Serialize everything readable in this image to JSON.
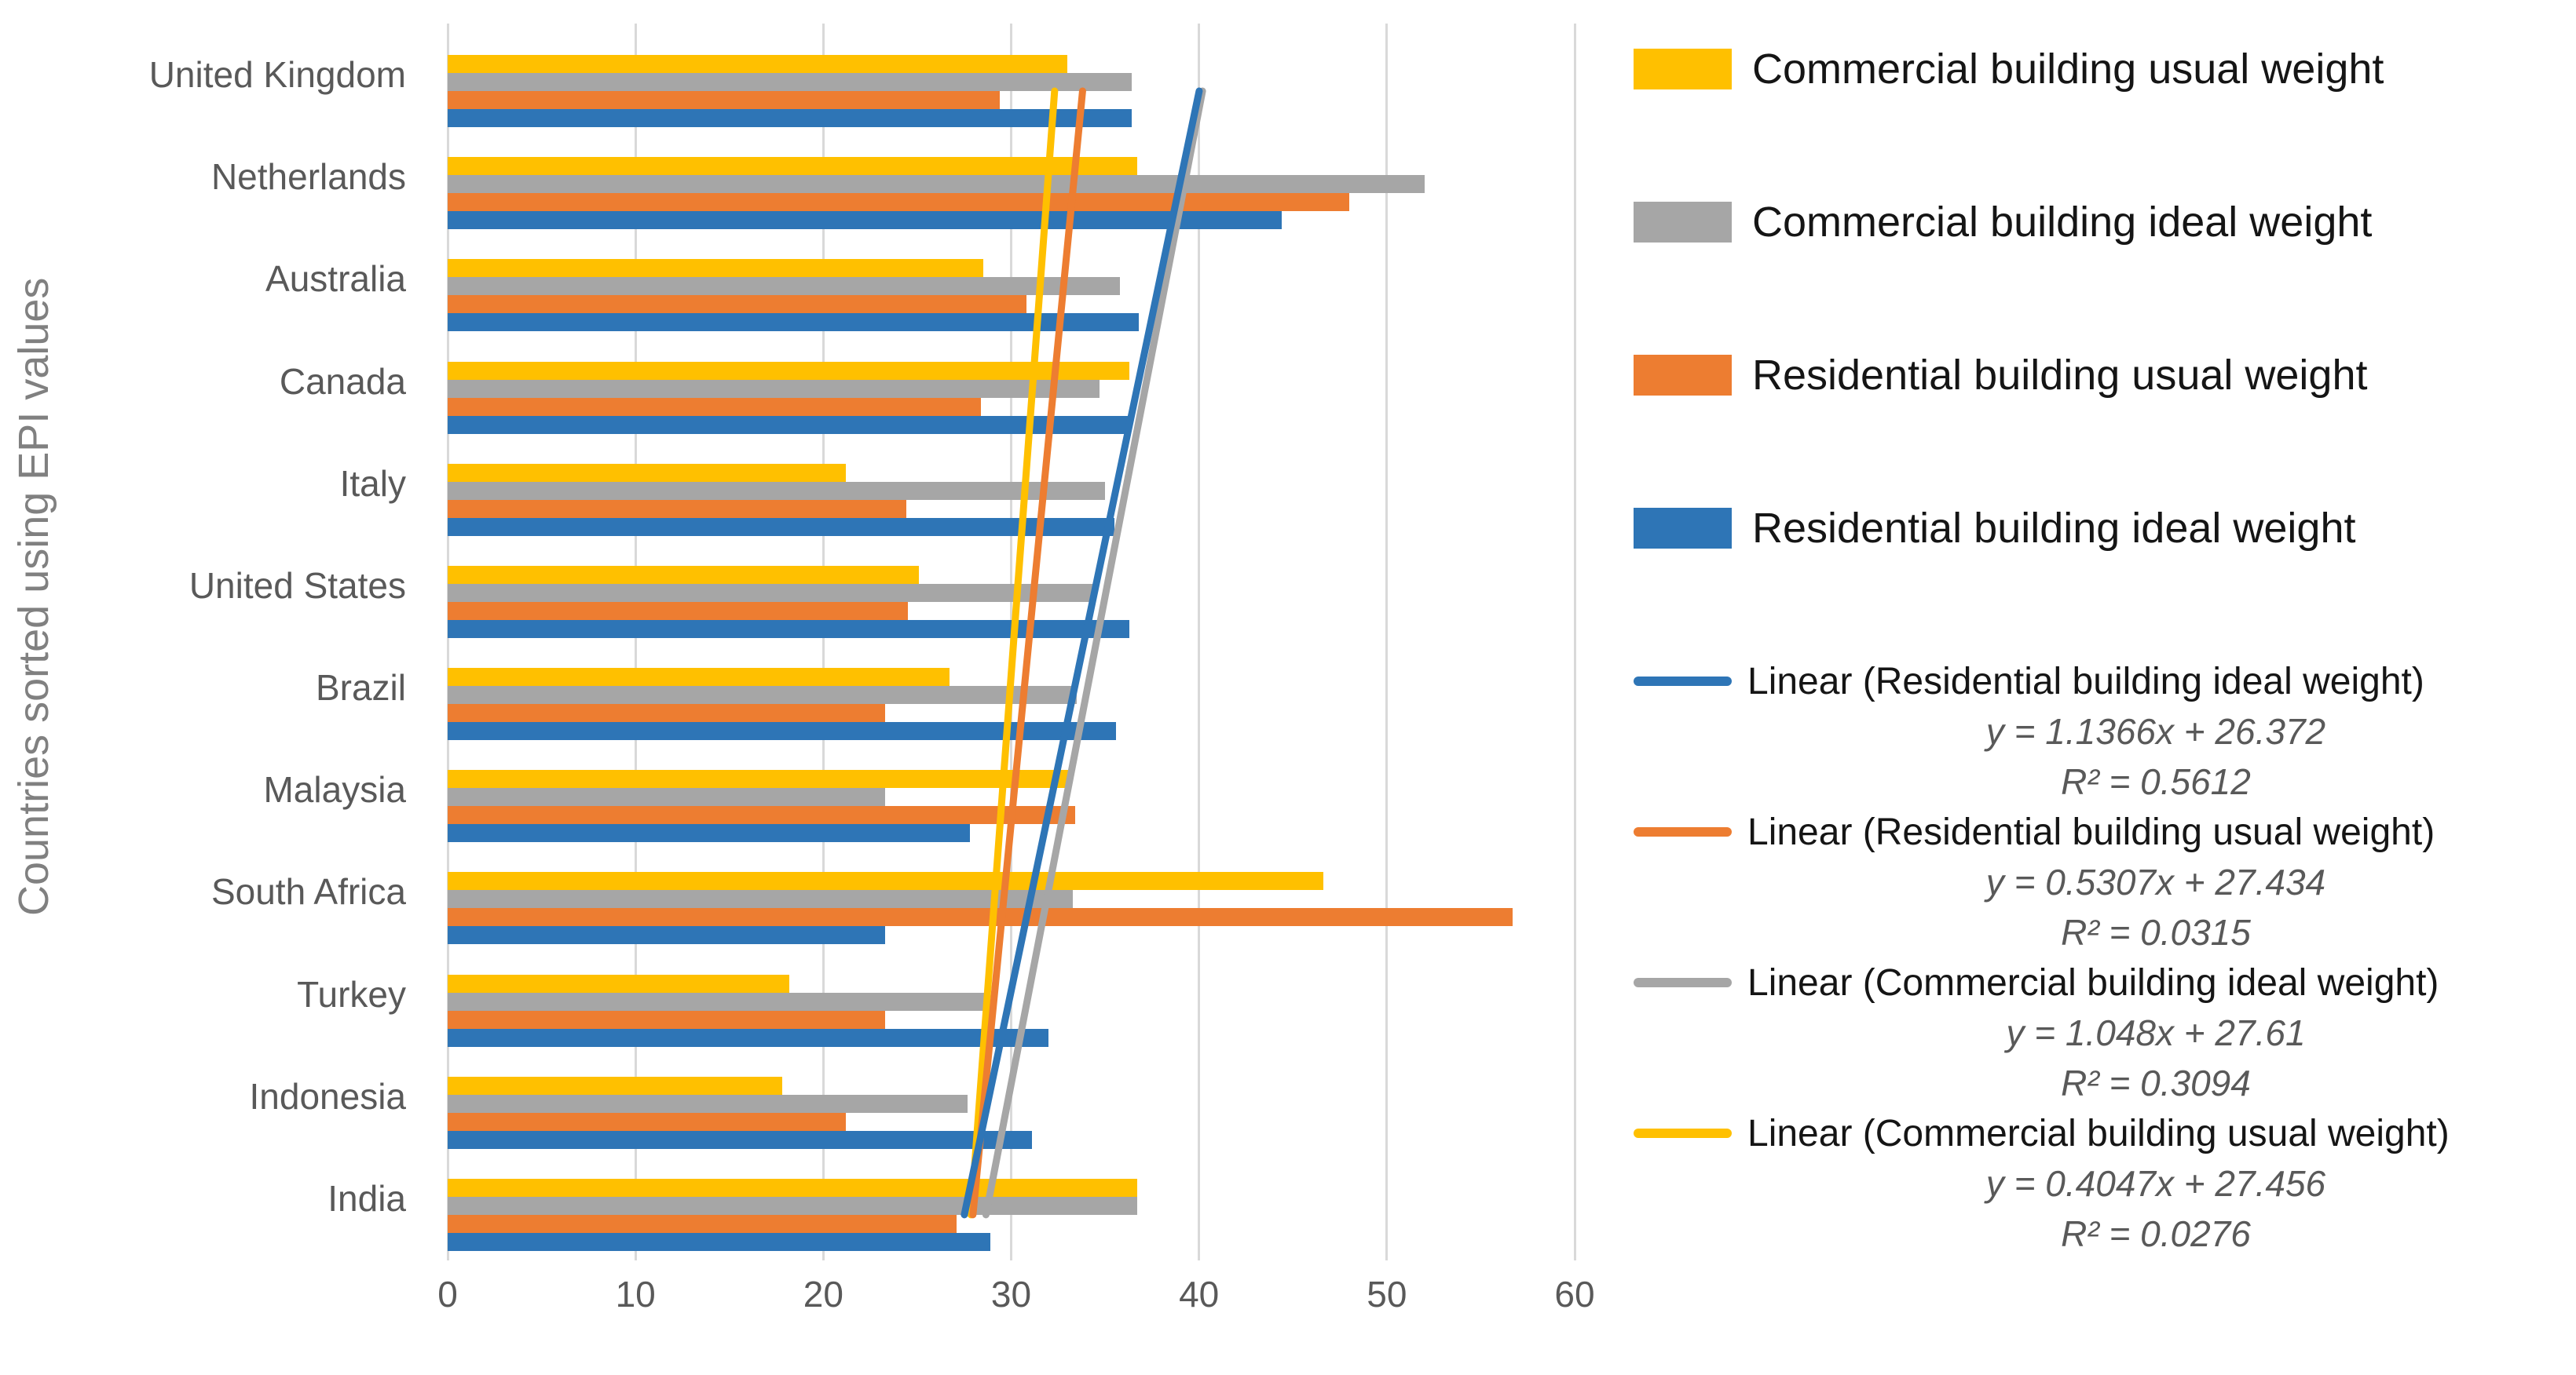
{
  "chart_data": {
    "type": "bar",
    "orientation": "horizontal",
    "title": "",
    "ylabel": "Countries sorted using EPI values",
    "xlabel": "",
    "xlim": [
      0,
      60
    ],
    "x_ticks": [
      "0",
      "10",
      "20",
      "30",
      "40",
      "50",
      "60"
    ],
    "grid": true,
    "legend_position": "right",
    "categories": [
      "United Kingdom",
      "Netherlands",
      "Australia",
      "Canada",
      "Italy",
      "United States",
      "Brazil",
      "Malaysia",
      "South Africa",
      "Turkey",
      "Indonesia",
      "India"
    ],
    "series": [
      {
        "name": "Commercial building usual weight",
        "color": "#FFC000",
        "values": [
          33.0,
          36.7,
          28.5,
          36.3,
          21.2,
          25.1,
          26.7,
          33.2,
          46.6,
          18.2,
          17.8,
          36.7
        ]
      },
      {
        "name": "Commercial building ideal weight",
        "color": "#A6A6A6",
        "values": [
          36.4,
          52.0,
          35.8,
          34.7,
          35.0,
          34.4,
          33.5,
          23.3,
          33.3,
          28.7,
          27.7,
          36.7
        ]
      },
      {
        "name": "Residential building usual weight",
        "color": "#ED7D31",
        "values": [
          29.4,
          48.0,
          30.8,
          28.4,
          24.4,
          24.5,
          23.3,
          33.4,
          56.7,
          23.3,
          21.2,
          27.1
        ]
      },
      {
        "name": "Residential building ideal weight",
        "color": "#2E75B6",
        "values": [
          36.4,
          44.4,
          36.8,
          36.2,
          35.5,
          36.3,
          35.6,
          27.8,
          23.3,
          32.0,
          31.1,
          28.9
        ]
      }
    ],
    "trendlines": [
      {
        "name": "Linear (Residential building ideal weight)",
        "color": "#2E75B6",
        "equation": "y = 1.1366x + 26.372",
        "r_squared": "R² = 0.5612",
        "slope": 1.1366,
        "intercept": 26.372
      },
      {
        "name": "Linear (Residential building usual weight)",
        "color": "#ED7D31",
        "equation": "y = 0.5307x + 27.434",
        "r_squared": "R² = 0.0315",
        "slope": 0.5307,
        "intercept": 27.434
      },
      {
        "name": "Linear (Commercial building ideal weight)",
        "color": "#A6A6A6",
        "equation": "y = 1.048x + 27.61",
        "r_squared": "R² = 0.3094",
        "slope": 1.048,
        "intercept": 27.61
      },
      {
        "name": "Linear (Commercial building usual weight)",
        "color": "#FFC000",
        "equation": "y = 0.4047x + 27.456",
        "r_squared": "R² = 0.0276",
        "slope": 0.4047,
        "intercept": 27.456
      }
    ]
  }
}
